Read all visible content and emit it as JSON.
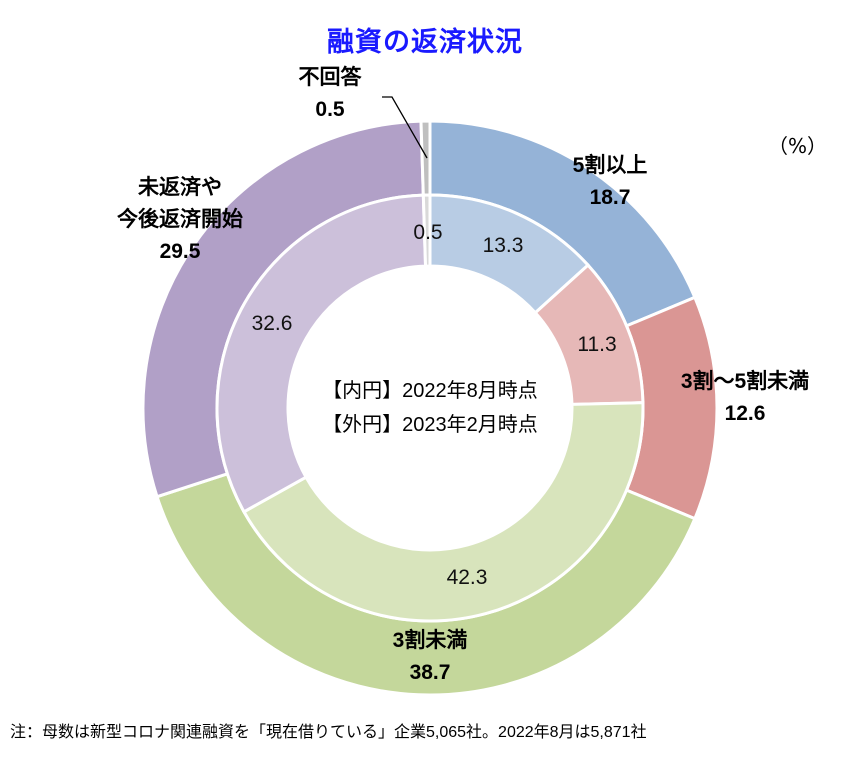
{
  "chart_data": {
    "type": "pie",
    "subtype": "double-donut",
    "title": "融資の返済状況",
    "unit": "（%）",
    "center_text": [
      "【内円】2022年8月時点",
      "【外円】2023年2月時点"
    ],
    "categories": [
      "5割以上",
      "3割～5割未満",
      "3割未満",
      "未返済や今後返済開始",
      "不回答"
    ],
    "series": [
      {
        "name": "外円 2023年2月時点",
        "values": [
          18.7,
          12.6,
          38.7,
          29.5,
          0.5
        ]
      },
      {
        "name": "内円 2022年8月時点",
        "values": [
          13.3,
          11.3,
          42.3,
          32.6,
          0.5
        ]
      }
    ],
    "colors_outer": [
      "#95b3d7",
      "#da9694",
      "#c4d79b",
      "#b1a0c7",
      "#bfbfbf"
    ],
    "colors_inner": [
      "#b8cce4",
      "#e6b8b7",
      "#d8e4bc",
      "#ccc0da",
      "#d9d9d9"
    ],
    "note": "注：母数は新型コロナ関連融資を「現在借りている」企業5,065社。2022年8月は5,871社"
  },
  "labels": {
    "outer": [
      {
        "name": "5割以上",
        "value": "18.7"
      },
      {
        "name": "3割～5割未満",
        "value": "12.6"
      },
      {
        "name": "3割未満",
        "value": "38.7"
      },
      {
        "name": "未返済や\n今後返済開始",
        "line1": "未返済や",
        "line2": "今後返済開始",
        "value": "29.5"
      },
      {
        "name": "不回答",
        "value": "0.5"
      }
    ],
    "inner": [
      "13.3",
      "11.3",
      "42.3",
      "32.6",
      "0.5"
    ]
  }
}
